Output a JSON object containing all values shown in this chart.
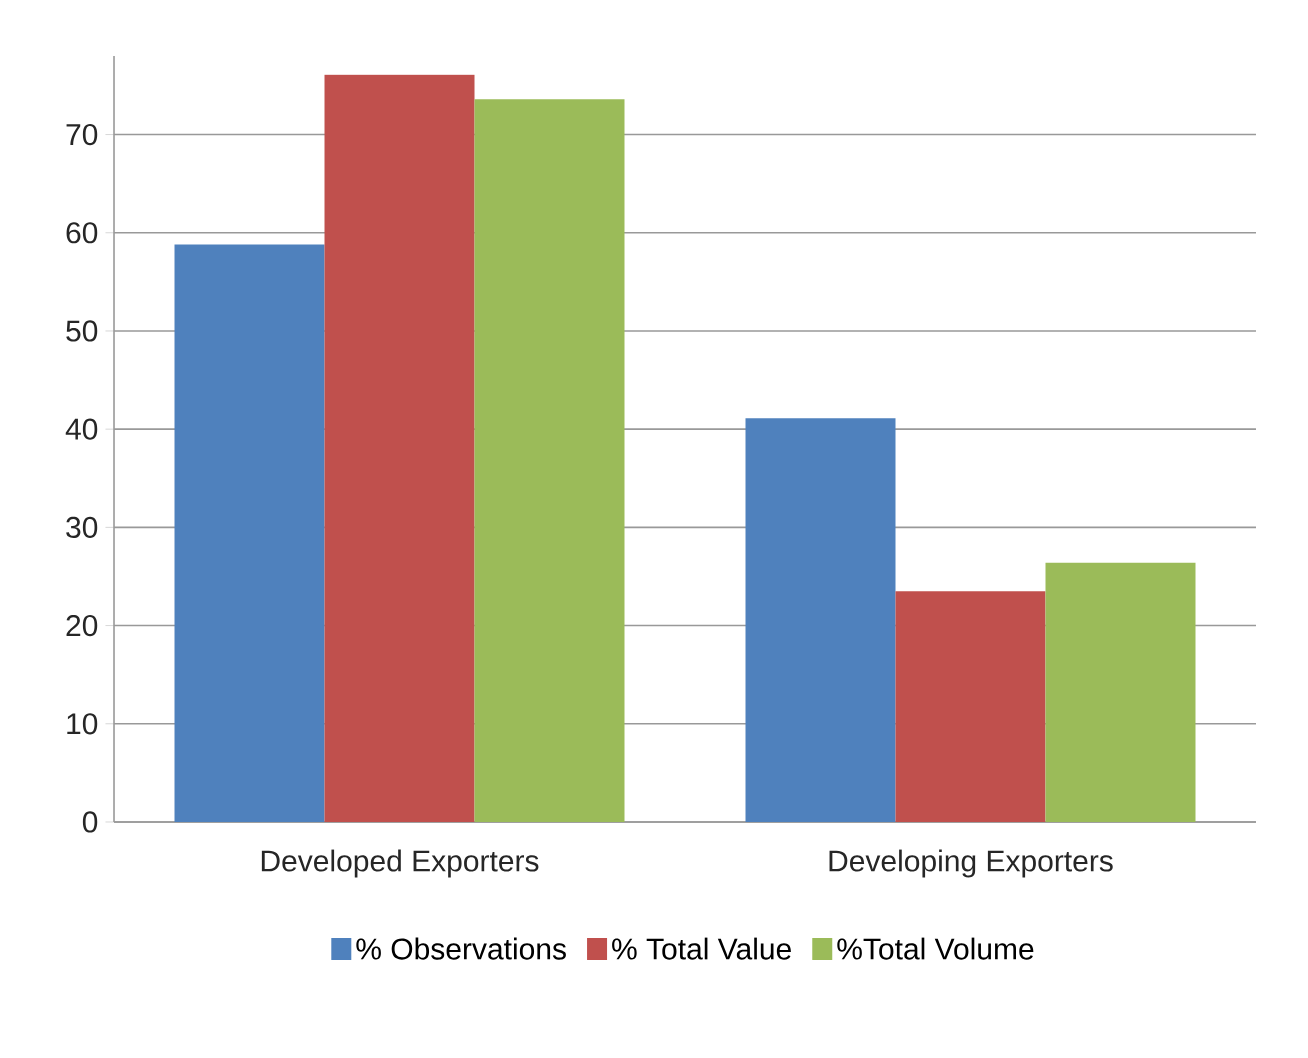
{
  "chart_data": {
    "type": "bar",
    "categories": [
      "Developed Exporters",
      "Developing Exporters"
    ],
    "series": [
      {
        "name": "% Observations",
        "color": "#4f81bd",
        "values": [
          58.8,
          41.1
        ]
      },
      {
        "name": "% Total Value",
        "color": "#c0504d",
        "values": [
          76.1,
          23.5
        ]
      },
      {
        "name": "%Total Volume",
        "color": "#9bbb59",
        "values": [
          73.6,
          26.4
        ]
      }
    ],
    "ylim": [
      0,
      78
    ],
    "yticks": [
      0,
      10,
      20,
      30,
      40,
      50,
      60,
      70
    ],
    "grid": "y",
    "legend": "bottom"
  }
}
